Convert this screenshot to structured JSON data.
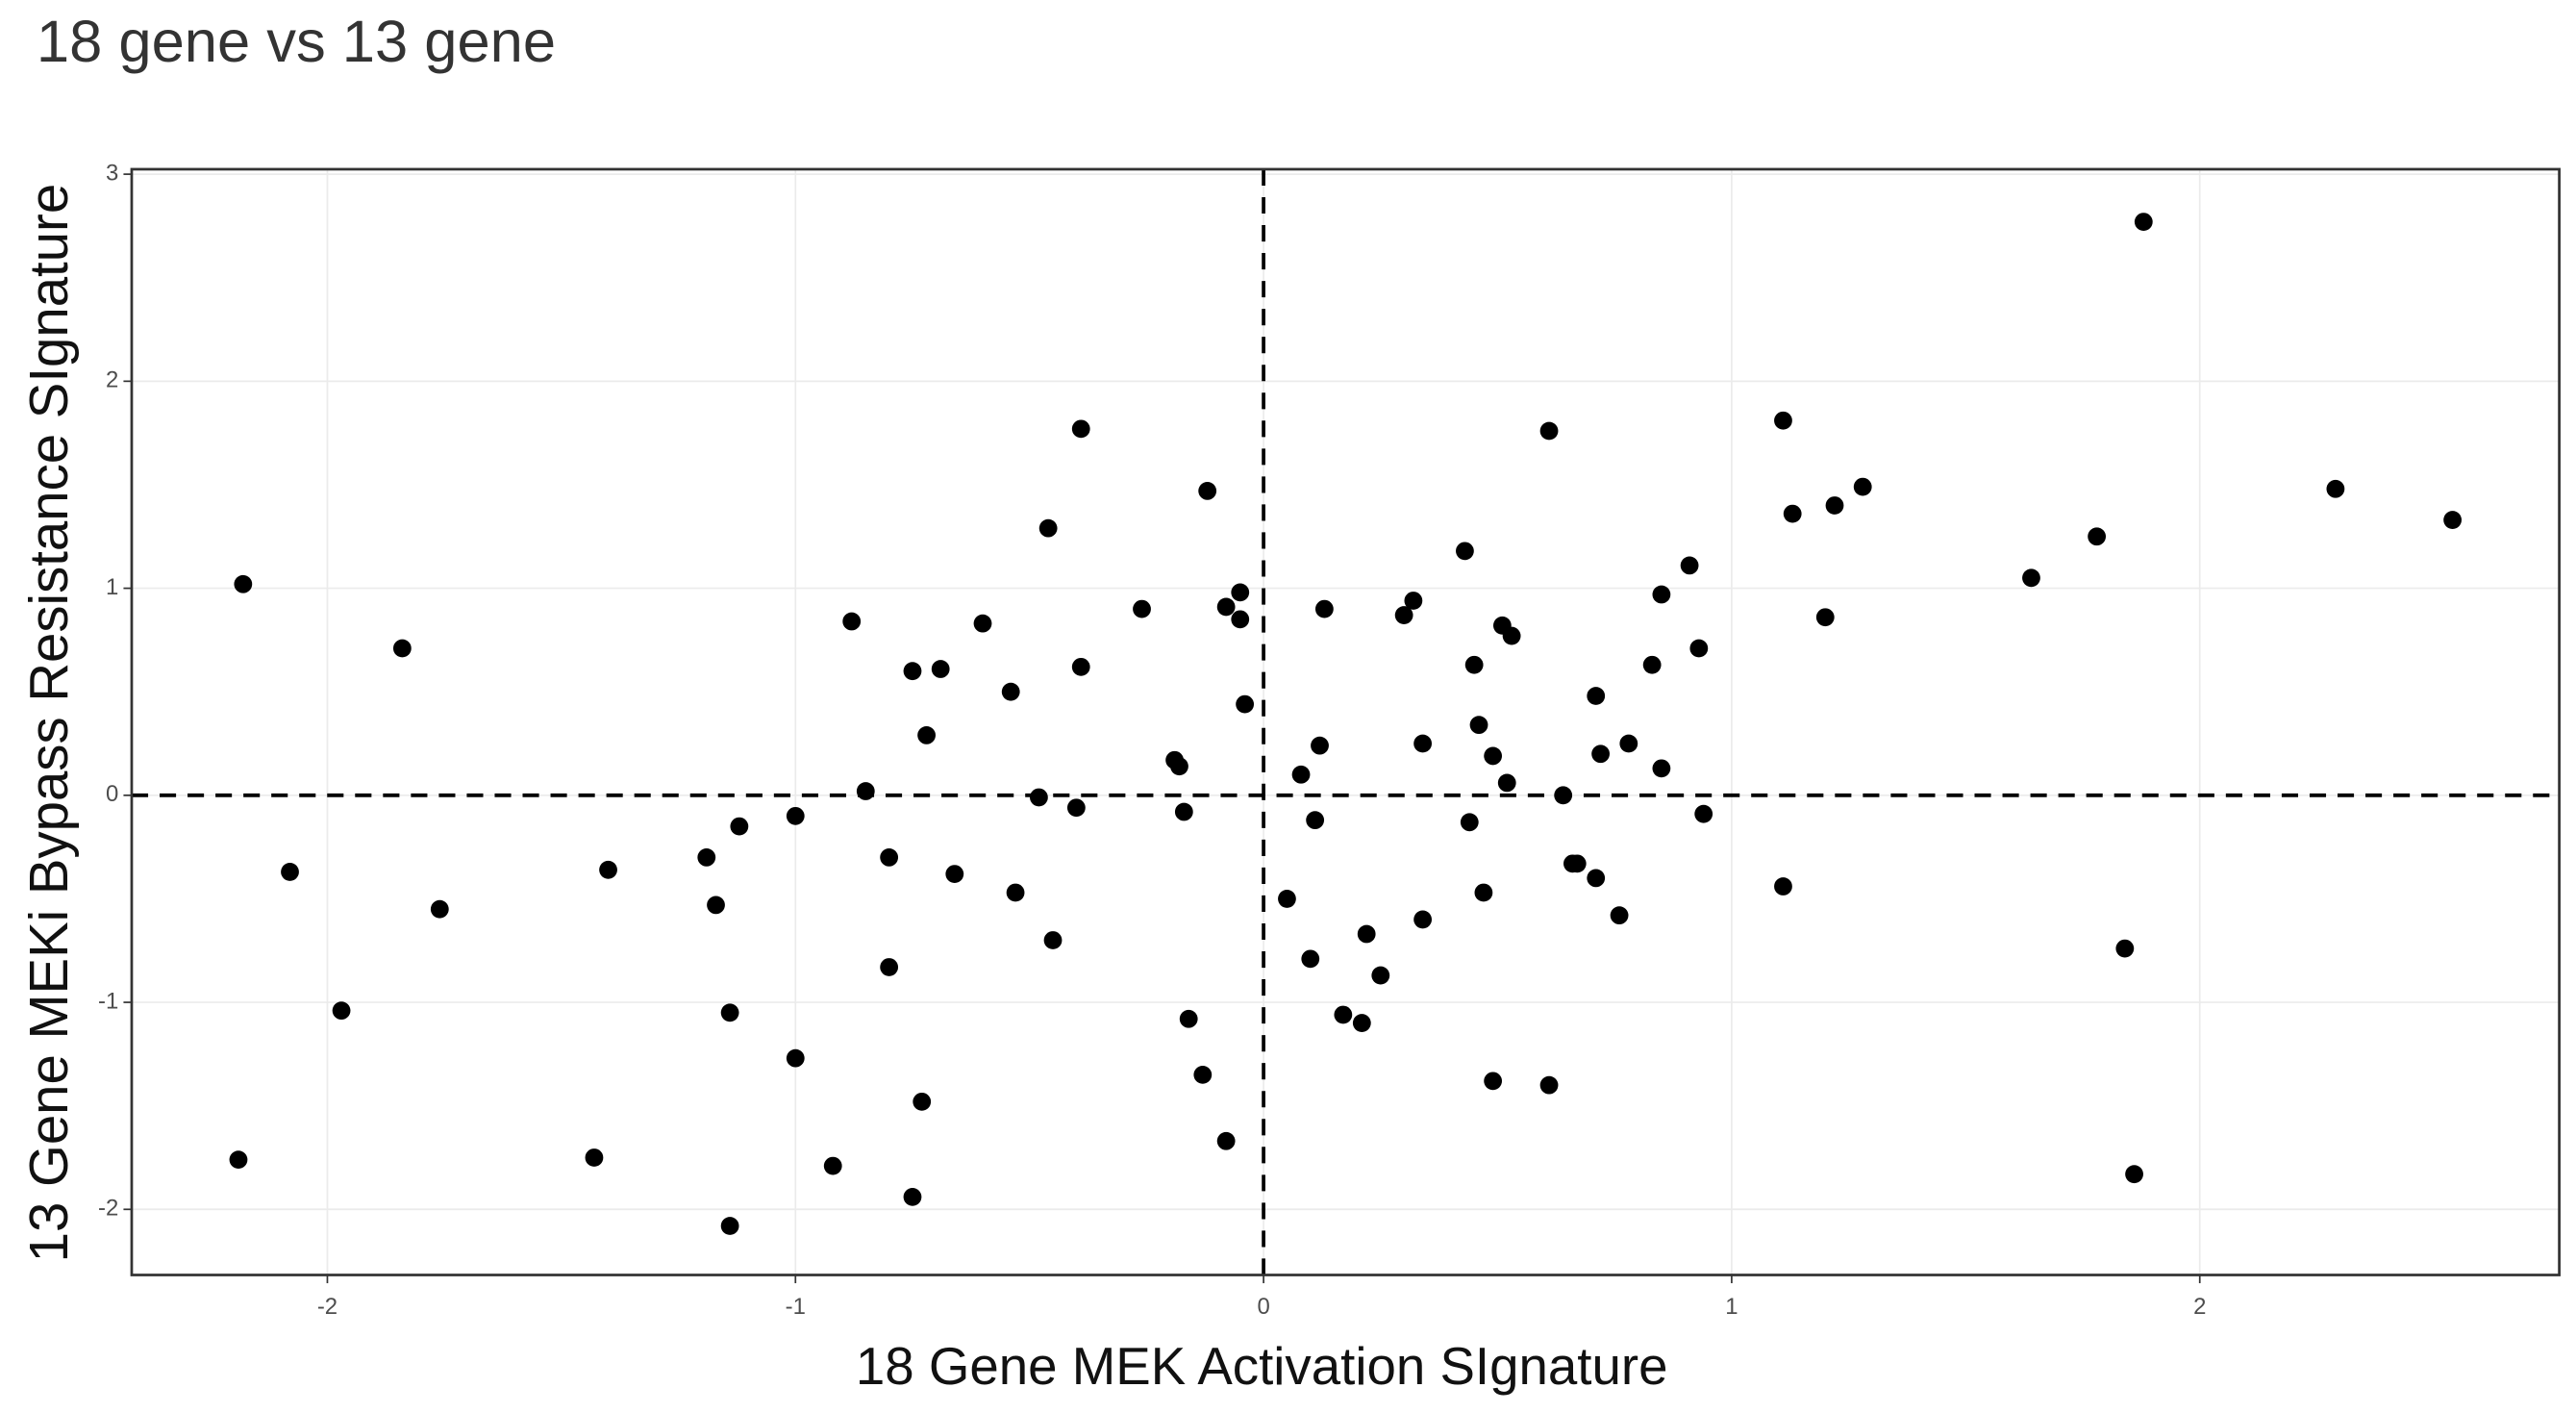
{
  "chart_data": {
    "type": "scatter",
    "title": "18 gene vs 13 gene",
    "x_label": "18 Gene MEK Activation SIgnature",
    "y_label": "13 Gene MEKi Bypass Resistance SIgnature",
    "color": "#000000",
    "grid": true,
    "hline": 0,
    "vline": 0,
    "xlim": [
      -2.418,
      2.768
    ],
    "ylim": [
      -2.317,
      3.024
    ],
    "xticks": [
      -2,
      -1,
      0,
      1,
      2
    ],
    "yticks": [
      -2,
      -1,
      0,
      1,
      2,
      3
    ],
    "x": [
      -2.18,
      -1.84,
      -2.08,
      -1.76,
      -1.97,
      -2.19,
      -1.4,
      -1.43,
      -1.19,
      -1.12,
      -1.17,
      -1.14,
      -1.14,
      -1.0,
      -1.0,
      -0.92,
      -0.88,
      -0.85,
      -0.8,
      -0.8,
      -0.75,
      -0.69,
      -0.72,
      -0.73,
      -0.75,
      -0.66,
      -0.6,
      -0.54,
      -0.53,
      -0.48,
      -0.46,
      -0.45,
      -0.4,
      -0.39,
      -0.39,
      -0.26,
      -0.19,
      -0.18,
      -0.17,
      -0.16,
      -0.13,
      -0.12,
      -0.08,
      -0.08,
      -0.05,
      -0.05,
      -0.04,
      0.05,
      0.08,
      0.1,
      0.11,
      0.12,
      0.13,
      0.17,
      0.21,
      0.22,
      0.25,
      0.3,
      0.32,
      0.34,
      0.34,
      0.43,
      0.44,
      0.45,
      0.46,
      0.47,
      0.49,
      0.49,
      0.51,
      0.52,
      0.53,
      0.61,
      0.61,
      0.64,
      0.66,
      0.67,
      0.71,
      0.71,
      0.72,
      0.76,
      0.78,
      0.83,
      0.85,
      0.85,
      0.91,
      0.93,
      0.94,
      1.11,
      1.11,
      1.13,
      1.2,
      1.22,
      1.28,
      1.64,
      1.78,
      1.84,
      1.86,
      1.88,
      2.29,
      2.54
    ],
    "y": [
      1.02,
      0.71,
      -0.37,
      -0.55,
      -1.04,
      -1.76,
      -0.36,
      -1.75,
      -0.3,
      -0.15,
      -0.53,
      -1.05,
      -2.08,
      -0.1,
      -1.27,
      -1.79,
      0.84,
      0.02,
      -0.3,
      -0.83,
      0.6,
      0.61,
      0.29,
      -1.48,
      -1.94,
      -0.38,
      0.83,
      0.5,
      -0.47,
      -0.01,
      1.29,
      -0.7,
      -0.06,
      0.62,
      1.77,
      0.9,
      0.17,
      0.14,
      -0.08,
      -1.08,
      -1.35,
      1.47,
      -1.67,
      0.91,
      0.98,
      0.85,
      0.44,
      -0.5,
      0.1,
      -0.79,
      -0.12,
      0.24,
      0.9,
      -1.06,
      -1.1,
      -0.67,
      -0.87,
      0.87,
      0.94,
      0.25,
      -0.6,
      1.18,
      -0.13,
      0.63,
      0.34,
      -0.47,
      0.19,
      -1.38,
      0.82,
      0.06,
      0.77,
      1.76,
      -1.4,
      0.0,
      -0.33,
      -0.33,
      -0.4,
      0.48,
      0.2,
      -0.58,
      0.25,
      0.63,
      0.97,
      0.13,
      1.11,
      0.71,
      -0.09,
      1.81,
      -0.44,
      1.36,
      0.86,
      1.4,
      1.49,
      1.05,
      1.25,
      -0.74,
      -1.83,
      2.77,
      1.48,
      1.33
    ]
  }
}
